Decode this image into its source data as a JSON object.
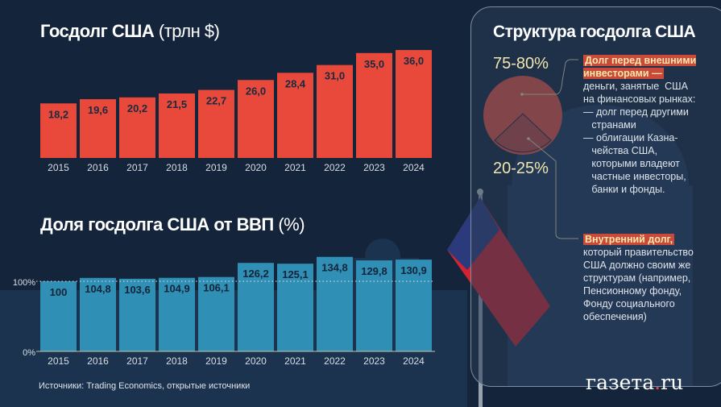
{
  "chart_data": [
    {
      "type": "bar",
      "title": "Госдолг США",
      "title_unit": "(трлн $)",
      "categories": [
        "2015",
        "2016",
        "2017",
        "2018",
        "2019",
        "2020",
        "2021",
        "2022",
        "2023",
        "2024"
      ],
      "values": [
        18.2,
        19.6,
        20.2,
        21.5,
        22.7,
        26.0,
        28.4,
        31.0,
        35.0,
        36.0
      ],
      "labels": [
        "18,2",
        "19,6",
        "20,2",
        "21,5",
        "22,7",
        "26,0",
        "28,4",
        "31,0",
        "35,0",
        "36,0"
      ],
      "ylim": [
        0,
        38
      ],
      "color": "#e8493a"
    },
    {
      "type": "bar",
      "title": "Доля госдолга США от ВВП",
      "title_unit": "(%)",
      "categories": [
        "2015",
        "2016",
        "2017",
        "2018",
        "2019",
        "2020",
        "2021",
        "2022",
        "2023",
        "2024"
      ],
      "values": [
        100,
        104.8,
        103.6,
        104.9,
        106.1,
        126.2,
        125.1,
        134.8,
        129.8,
        130.9
      ],
      "labels": [
        "100",
        "104,8",
        "103,6",
        "104,9",
        "106,1",
        "126,2",
        "125,1",
        "134,8",
        "129,8",
        "130,9"
      ],
      "ylim": [
        0,
        140
      ],
      "yticks": [
        "0%",
        "100%"
      ],
      "color": "#2f8fb4"
    },
    {
      "type": "pie",
      "title": "Структура госдолга США",
      "slices": [
        {
          "label": "75-80%",
          "value": 77.5,
          "color": "#f0523d"
        },
        {
          "label": "20-25%",
          "value": 22.5,
          "color": "#c5473d"
        }
      ]
    }
  ],
  "structure": {
    "external_title": "Долг перед внешними инвесторами —",
    "external_lines": [
      "деньги, занятые  США",
      "на финансовых рынках:",
      "— долг перед другими",
      "   странами",
      "— облигации Казна-",
      "   чейства США,",
      "   которыми владеют",
      "   частные инвесторы,",
      "   банки и фонды."
    ],
    "internal_title": "Внутренний долг,",
    "internal_lines": [
      "который правительство",
      "США должно своим же",
      "структурам (например,",
      "Пенсионному фонду,",
      "Фонду социального",
      "обеспечения)"
    ]
  },
  "source": "Источники: Trading Economics, открытые источники",
  "logo": {
    "main": "газета",
    "dot": ".",
    "tld": "ru"
  }
}
